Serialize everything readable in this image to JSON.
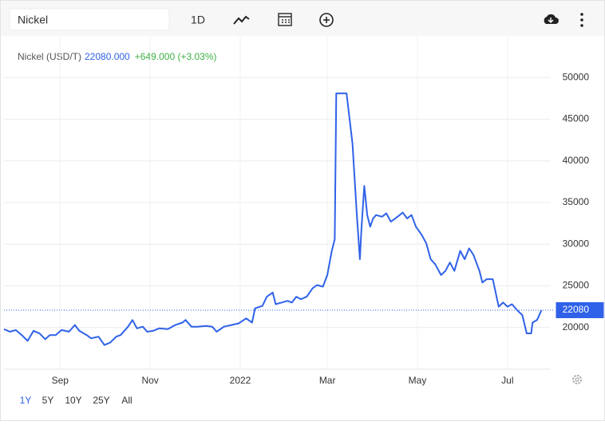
{
  "toolbar": {
    "search": "Nickel",
    "interval": "1D"
  },
  "ranges": [
    "1Y",
    "5Y",
    "10Y",
    "25Y",
    "All"
  ],
  "chart_data": {
    "type": "line",
    "title": "Nickel (USD/T)",
    "price_label": "22080.000",
    "change_label": "+649.000 (+3.03%)",
    "xlim": [
      0,
      370
    ],
    "xticks": [
      {
        "value": 38,
        "label": "Sep"
      },
      {
        "value": 99,
        "label": "Nov"
      },
      {
        "value": 160,
        "label": "2022"
      },
      {
        "value": 219,
        "label": "Mar"
      },
      {
        "value": 280,
        "label": "May"
      },
      {
        "value": 341,
        "label": "Jul"
      }
    ],
    "ylim": [
      15000,
      55000
    ],
    "yticks": [
      20000,
      25000,
      30000,
      35000,
      40000,
      45000,
      50000
    ],
    "grid": true,
    "x": [
      0,
      4,
      8,
      12,
      16,
      20,
      24,
      28,
      31,
      35,
      39,
      44,
      48,
      51,
      56,
      59,
      64,
      68,
      72,
      76,
      79,
      84,
      87,
      90,
      94,
      97,
      101,
      105,
      111,
      116,
      121,
      123,
      127,
      131,
      137,
      141,
      144,
      149,
      154,
      159,
      164,
      168,
      170,
      175,
      178,
      182,
      184,
      188,
      192,
      195,
      198,
      201,
      205,
      209,
      212,
      216,
      219,
      222,
      224,
      225,
      230,
      232,
      236,
      239,
      241,
      242,
      244,
      246,
      248,
      250,
      252,
      256,
      259,
      262,
      265,
      268,
      270,
      273,
      276,
      279,
      283,
      286,
      289,
      292,
      296,
      299,
      302,
      305,
      309,
      312,
      315,
      318,
      322,
      324,
      327,
      331,
      335,
      338,
      341,
      344,
      348,
      351,
      354,
      357,
      358,
      361,
      364
    ],
    "series": [
      {
        "name": "Nickel",
        "color": "#2f62e8",
        "values": [
          19800,
          19500,
          19700,
          19100,
          18400,
          19600,
          19300,
          18600,
          19100,
          19100,
          19700,
          19500,
          20300,
          19600,
          19100,
          18700,
          18900,
          17900,
          18200,
          18900,
          19100,
          20100,
          20900,
          19900,
          20100,
          19500,
          19600,
          19900,
          19800,
          20300,
          20600,
          20900,
          20100,
          20100,
          20200,
          20100,
          19500,
          20100,
          20300,
          20500,
          21100,
          20600,
          22300,
          22600,
          23700,
          24200,
          22800,
          23000,
          23200,
          23000,
          23700,
          23400,
          23700,
          24700,
          25100,
          24900,
          26300,
          29200,
          30600,
          48100,
          48100,
          48100,
          42100,
          33500,
          28200,
          31600,
          37000,
          33500,
          32100,
          33100,
          33500,
          33300,
          33700,
          32700,
          33100,
          33500,
          33800,
          33100,
          33500,
          32100,
          31100,
          30100,
          28200,
          27600,
          26300,
          26800,
          27800,
          26800,
          29200,
          28200,
          29500,
          28700,
          26800,
          25400,
          25800,
          25800,
          22500,
          23000,
          22500,
          22800,
          22000,
          21500,
          19300,
          19300,
          20600,
          20900,
          22080
        ]
      }
    ]
  }
}
